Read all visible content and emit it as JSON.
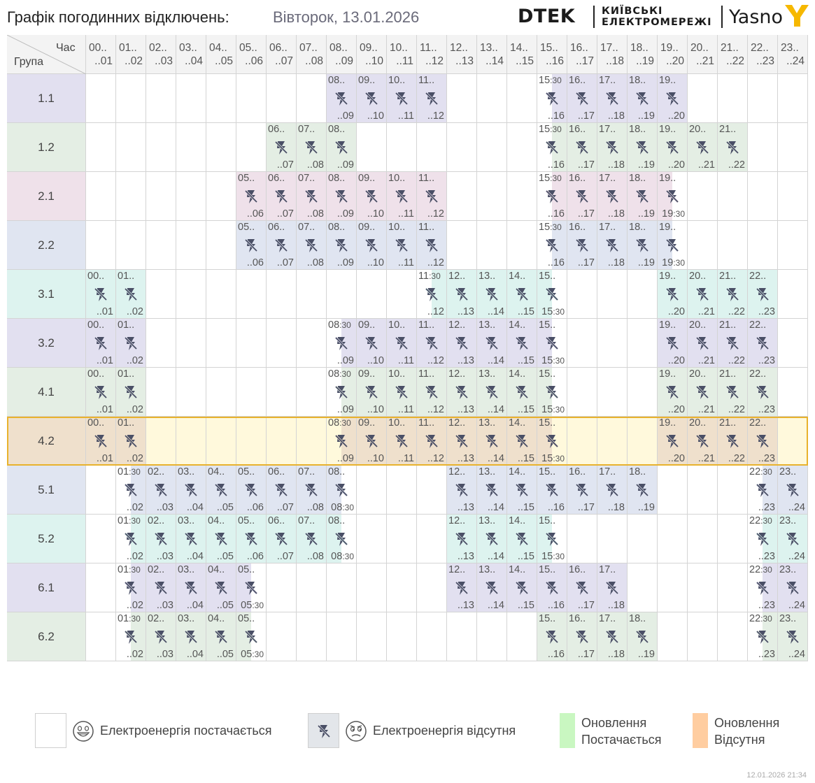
{
  "header": {
    "title_label": "Графік погодинних відключень:",
    "title_date": "Вівторок, 13.01.2026",
    "logo_dtek": "DTEK",
    "logo_kyiv_line1": "КИЇВСЬКІ",
    "logo_kyiv_line2": "ЕЛЕКТРОМЕРЕЖІ",
    "logo_yasno": "Yasno"
  },
  "table": {
    "corner_hour": "Час",
    "corner_group": "Група",
    "hours_top": [
      "00..",
      "01..",
      "02..",
      "03..",
      "04..",
      "05..",
      "06..",
      "07..",
      "08..",
      "09..",
      "10..",
      "11..",
      "12..",
      "13..",
      "14..",
      "15..",
      "16..",
      "17..",
      "18..",
      "19..",
      "20..",
      "21..",
      "22..",
      "23.."
    ],
    "hours_bottom": [
      "..01",
      "..02",
      "..03",
      "..04",
      "..05",
      "..06",
      "..07",
      "..08",
      "..09",
      "..10",
      "..11",
      "..12",
      "..13",
      "..14",
      "..15",
      "..16",
      "..17",
      "..18",
      "..19",
      "..20",
      "..21",
      "..22",
      "..23",
      "..24"
    ],
    "highlighted_group": "4.2",
    "groups": [
      {
        "label": "1.1",
        "outages": [
          [
            8,
            12
          ],
          [
            15.5,
            20
          ]
        ]
      },
      {
        "label": "1.2",
        "outages": [
          [
            6,
            9
          ],
          [
            15.5,
            22
          ]
        ]
      },
      {
        "label": "2.1",
        "outages": [
          [
            5,
            12
          ],
          [
            15.5,
            19.5
          ]
        ]
      },
      {
        "label": "2.2",
        "outages": [
          [
            5,
            12
          ],
          [
            15.5,
            19.5
          ]
        ]
      },
      {
        "label": "3.1",
        "outages": [
          [
            0,
            2
          ],
          [
            11.5,
            15.5
          ],
          [
            19,
            23
          ]
        ]
      },
      {
        "label": "3.2",
        "outages": [
          [
            0,
            2
          ],
          [
            8.5,
            15.5
          ],
          [
            19,
            23
          ]
        ]
      },
      {
        "label": "4.1",
        "outages": [
          [
            0,
            2
          ],
          [
            8.5,
            15.5
          ],
          [
            19,
            23
          ]
        ]
      },
      {
        "label": "4.2",
        "outages": [
          [
            0,
            2
          ],
          [
            8.5,
            15.5
          ],
          [
            19,
            23
          ]
        ]
      },
      {
        "label": "5.1",
        "outages": [
          [
            1.5,
            8.5
          ],
          [
            12,
            19
          ],
          [
            22.5,
            24
          ]
        ]
      },
      {
        "label": "5.2",
        "outages": [
          [
            1.5,
            8.5
          ],
          [
            12,
            15.5
          ],
          [
            22.5,
            24
          ]
        ]
      },
      {
        "label": "6.1",
        "outages": [
          [
            1.5,
            5.5
          ],
          [
            12,
            18
          ],
          [
            22.5,
            24
          ]
        ]
      },
      {
        "label": "6.2",
        "outages": [
          [
            1.5,
            5.5
          ],
          [
            15,
            19
          ],
          [
            22.5,
            24
          ]
        ]
      }
    ]
  },
  "legend": {
    "supplied": "Електроенергія постачається",
    "absent": "Електроенергія відсутня",
    "update_supplied_l1": "Оновлення",
    "update_supplied_l2": "Постачається",
    "update_absent_l1": "Оновлення",
    "update_absent_l2": "Відсутня"
  },
  "footer": {
    "timestamp": "12.01.2026   21:34"
  },
  "colors": {
    "group_1.1": "#e2e0f0",
    "group_1.2": "#e4eee4",
    "group_2.1": "#efe1ea",
    "group_2.2": "#e0e5f1",
    "group_3.1": "#ddf3ef",
    "group_3.2": "#e2e0f0",
    "group_4.1": "#e4eee4",
    "group_4.2": "#efe0cc",
    "group_5.1": "#e0e5f1",
    "group_5.2": "#ddf3ef",
    "group_6.1": "#e2e0f0",
    "group_6.2": "#e4eee4",
    "highlight_fill": "#fff9dc",
    "highlight_border": "#e8b22d",
    "update_supplied": "#c9f7c1",
    "update_absent": "#ffcda0",
    "icon": "#4a4f66"
  },
  "icons": {
    "outage": "power-off-icon",
    "happy": "happy-face-icon",
    "sad": "sad-face-icon"
  }
}
